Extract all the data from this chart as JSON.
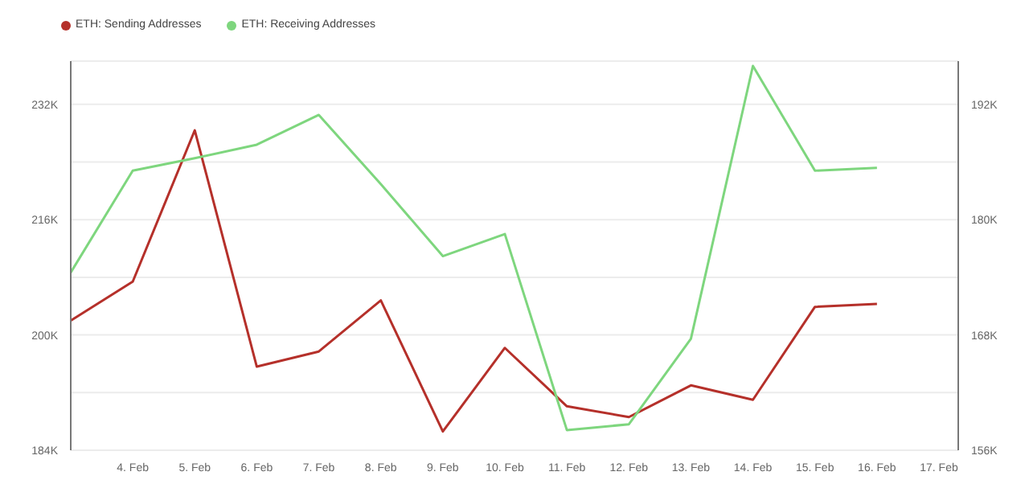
{
  "chart_data": {
    "type": "line",
    "categories": [
      null,
      "4. Feb",
      "5. Feb",
      "6. Feb",
      "7. Feb",
      "8. Feb",
      "9. Feb",
      "10. Feb",
      "11. Feb",
      "12. Feb",
      "13. Feb",
      "14. Feb",
      "15. Feb",
      "16. Feb",
      "17. Feb"
    ],
    "series": [
      {
        "name": "ETH: Sending Addresses",
        "color": "#b5302a",
        "values": [
          202.0,
          207.4,
          228.4,
          195.6,
          197.7,
          204.8,
          186.6,
          198.2,
          190.1,
          188.6,
          193.0,
          191.0,
          203.9,
          204.3,
          null
        ]
      },
      {
        "name": "ETH: Receiving Addresses",
        "color": "#7ed67e",
        "axis": "y2",
        "values": [
          174.5,
          185.1,
          186.4,
          187.8,
          190.9,
          183.7,
          176.2,
          178.5,
          158.1,
          158.7,
          167.6,
          196.0,
          185.1,
          185.4,
          null
        ]
      }
    ],
    "ylim": [
      184,
      238
    ],
    "yticks": [
      {
        "value": 184,
        "label": "184K"
      },
      {
        "value": 192,
        "label": null
      },
      {
        "value": 200,
        "label": "200K"
      },
      {
        "value": 208,
        "label": null
      },
      {
        "value": 216,
        "label": "216K"
      },
      {
        "value": 224,
        "label": null
      },
      {
        "value": 232,
        "label": "232K"
      }
    ],
    "y2lim": [
      156,
      196.5
    ],
    "y2ticks": [
      {
        "value": 156,
        "label": "156K"
      },
      {
        "value": 168,
        "label": "168K"
      },
      {
        "value": 180,
        "label": "180K"
      },
      {
        "value": 192,
        "label": "192K"
      }
    ],
    "grid": "y",
    "legend": "top left",
    "marker": "none"
  }
}
